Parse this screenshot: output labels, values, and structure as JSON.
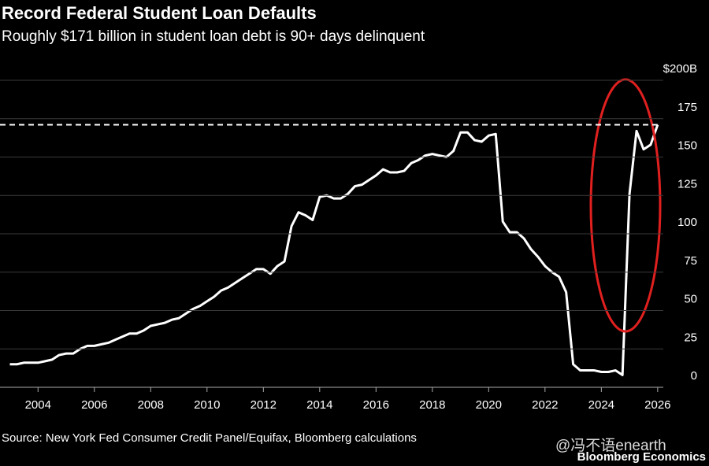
{
  "chart_data": {
    "type": "line",
    "title": "Record Federal Student Loan Defaults",
    "subtitle": "Roughly $171 billion in student loan debt is 90+ days delinquent",
    "source": "Source: New York Fed Consumer Credit Panel/Equifax, Bloomberg calculations",
    "brand": "Bloomberg Economics",
    "watermark": "@冯不语enearth",
    "color": "#ffffff",
    "x": [
      2003,
      2003.25,
      2003.5,
      2003.75,
      2004,
      2004.25,
      2004.5,
      2004.75,
      2005,
      2005.25,
      2005.5,
      2005.75,
      2006,
      2006.25,
      2006.5,
      2006.75,
      2007,
      2007.25,
      2007.5,
      2007.75,
      2008,
      2008.25,
      2008.5,
      2008.75,
      2009,
      2009.25,
      2009.5,
      2009.75,
      2010,
      2010.25,
      2010.5,
      2010.75,
      2011,
      2011.25,
      2011.5,
      2011.75,
      2012,
      2012.25,
      2012.5,
      2012.75,
      2013,
      2013.25,
      2013.5,
      2013.75,
      2014,
      2014.25,
      2014.5,
      2014.75,
      2015,
      2015.25,
      2015.5,
      2015.75,
      2016,
      2016.25,
      2016.5,
      2016.75,
      2017,
      2017.25,
      2017.5,
      2017.75,
      2018,
      2018.25,
      2018.5,
      2018.75,
      2019,
      2019.25,
      2019.5,
      2019.75,
      2020,
      2020.25,
      2020.5,
      2020.75,
      2021,
      2021.25,
      2021.5,
      2021.75,
      2022,
      2022.25,
      2022.5,
      2022.75,
      2023,
      2023.25,
      2023.5,
      2023.75,
      2024,
      2024.25,
      2024.5,
      2024.75,
      2025,
      2025.25,
      2025.5,
      2025.75,
      2026
    ],
    "values": [
      15,
      15,
      16,
      16,
      16,
      17,
      18,
      21,
      22,
      22,
      25,
      27,
      27,
      28,
      29,
      31,
      33,
      35,
      35,
      37,
      40,
      41,
      42,
      44,
      45,
      48,
      51,
      53,
      56,
      59,
      63,
      65,
      68,
      71,
      74,
      77,
      77,
      74,
      79,
      82,
      105,
      114,
      112,
      109,
      124,
      125,
      123,
      123,
      126,
      131,
      132,
      135,
      138,
      142,
      140,
      140,
      141,
      146,
      148,
      151,
      152,
      151,
      150,
      154,
      166,
      166,
      161,
      160,
      164,
      165,
      108,
      101,
      101,
      97,
      90,
      85,
      79,
      75,
      72,
      62,
      15,
      11,
      11,
      11,
      10,
      10,
      11,
      8,
      126,
      167,
      155,
      158,
      171
    ],
    "reference_line": 171,
    "xlim": [
      2002.65,
      2026.2
    ],
    "xticks": [
      2004,
      2006,
      2008,
      2010,
      2012,
      2014,
      2016,
      2018,
      2020,
      2022,
      2024,
      2026
    ],
    "ylim": [
      0,
      200
    ],
    "yticks": [
      0,
      25,
      50,
      75,
      100,
      125,
      150,
      175,
      {
        "value": 200,
        "label": "$200B"
      }
    ],
    "grid": true
  }
}
